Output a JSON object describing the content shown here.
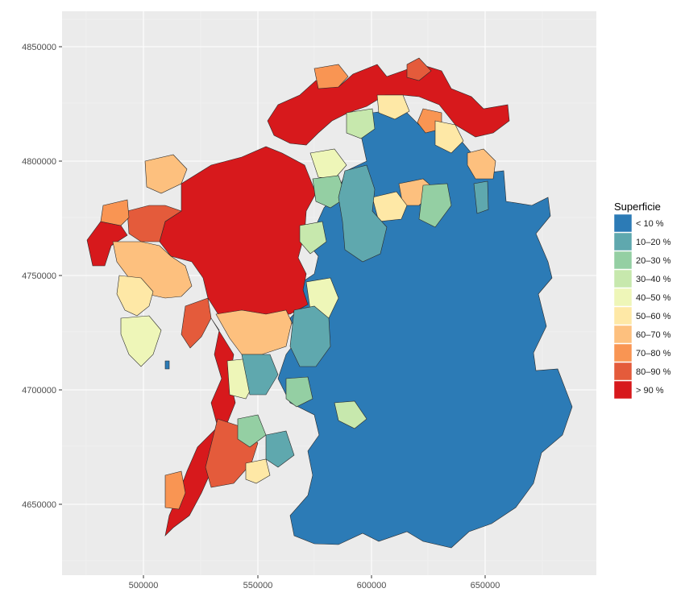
{
  "map": {
    "type": "choropleth",
    "x_ticks": [
      "500000",
      "550000",
      "600000",
      "650000"
    ],
    "y_ticks": [
      "4850000",
      "4800000",
      "4750000",
      "4700000",
      "4650000"
    ],
    "legend": {
      "title": "Superficie",
      "items": [
        {
          "label": "< 10 %",
          "color": "#2c7bb6"
        },
        {
          "label": "10–20 %",
          "color": "#5fa8ae"
        },
        {
          "label": "20–30 %",
          "color": "#94cfa3"
        },
        {
          "label": "30–40 %",
          "color": "#c7e8ad"
        },
        {
          "label": "40–50 %",
          "color": "#eef6b8"
        },
        {
          "label": "50–60 %",
          "color": "#fee8a6"
        },
        {
          "label": "60–70 %",
          "color": "#fdc07e"
        },
        {
          "label": "70–80 %",
          "color": "#f99553"
        },
        {
          "label": "80–90 %",
          "color": "#e45b3b"
        },
        {
          "label": "> 90 %",
          "color": "#d7191c"
        }
      ]
    }
  }
}
